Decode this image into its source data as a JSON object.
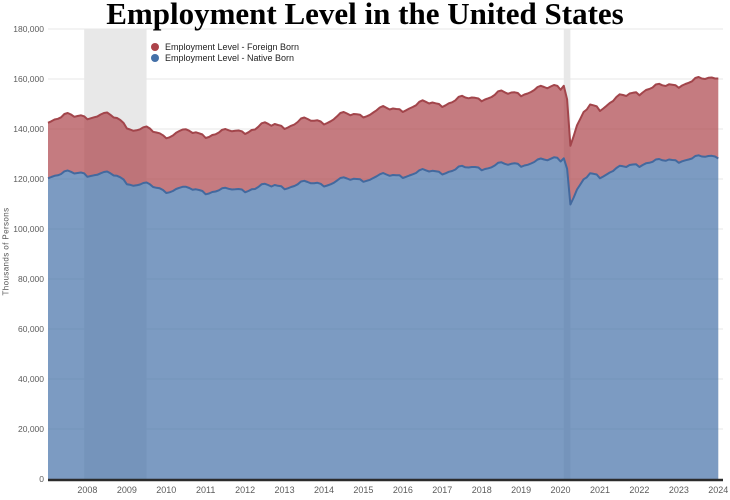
{
  "title": "Employment Level in the United States",
  "y_axis": {
    "unit_label": "Thousands of Persons",
    "tick_labels": [
      "0",
      "20,000",
      "40,000",
      "60,000",
      "80,000",
      "100,000",
      "120,000",
      "140,000",
      "160,000",
      "180,000"
    ]
  },
  "x_axis": {
    "tick_labels": [
      "2008",
      "2009",
      "2010",
      "2011",
      "2012",
      "2013",
      "2014",
      "2015",
      "2016",
      "2017",
      "2018",
      "2019",
      "2020",
      "2021",
      "2022",
      "2023",
      "2024"
    ]
  },
  "legend": {
    "items": [
      {
        "label": "Employment Level - Foreign Born",
        "color": "#ac434a"
      },
      {
        "label": "Employment Level - Native Born",
        "color": "#4470a8"
      }
    ]
  },
  "colors": {
    "foreign_stroke": "#a2454b",
    "foreign_fill": "rgba(172,67,74,0.70)",
    "native_stroke": "#43699e",
    "native_fill": "rgba(68,112,168,0.70)",
    "recession_band": "#e8e8e8",
    "gridline": "#e7e7e7",
    "axis_line": "#2b2b2b"
  },
  "chart_data": {
    "type": "area",
    "stacked": true,
    "title": "Employment Level in the United States",
    "ylabel": "Thousands of Persons",
    "ylim": [
      0,
      180000
    ],
    "y_step": 20000,
    "frequency": "monthly",
    "x_start": "2007-01",
    "x_end_data": "2024-01",
    "x_domain": [
      2007.0,
      2024.12
    ],
    "x_ticks": [
      2008,
      2009,
      2010,
      2011,
      2012,
      2013,
      2014,
      2015,
      2016,
      2017,
      2018,
      2019,
      2020,
      2021,
      2022,
      2023,
      2024
    ],
    "grid": "horizontal-only",
    "legend_position": "top-left-inside",
    "recession_bands": [
      [
        2007.917,
        2009.5
      ],
      [
        2020.083,
        2020.25
      ]
    ],
    "series": [
      {
        "name": "Employment Level - Native Born",
        "color": "#4470a8",
        "values": [
          120300,
          120800,
          121300,
          121500,
          122000,
          123100,
          123400,
          122900,
          122200,
          122400,
          122600,
          122300,
          120900,
          121200,
          121500,
          121700,
          122300,
          122800,
          123000,
          122300,
          121400,
          121300,
          120700,
          119800,
          117900,
          117700,
          117300,
          117500,
          117800,
          118400,
          118600,
          117900,
          116800,
          116500,
          116300,
          115600,
          114400,
          114700,
          115200,
          116000,
          116500,
          116900,
          116900,
          116400,
          115700,
          115900,
          115600,
          115200,
          113900,
          114200,
          114800,
          115000,
          115500,
          116300,
          116500,
          116100,
          115800,
          115900,
          116000,
          115800,
          114700,
          115200,
          115900,
          116000,
          116800,
          117900,
          118100,
          117600,
          117000,
          117600,
          117300,
          117100,
          115900,
          116300,
          116800,
          117200,
          117900,
          119000,
          119300,
          118800,
          118300,
          118300,
          118500,
          118100,
          117000,
          117400,
          117900,
          118500,
          119400,
          120400,
          120700,
          120200,
          119700,
          120100,
          120000,
          119900,
          118900,
          119300,
          119700,
          120400,
          121100,
          121900,
          122400,
          121800,
          121300,
          121600,
          121500,
          121500,
          120400,
          120900,
          121400,
          121900,
          122400,
          123500,
          124000,
          123500,
          123000,
          123300,
          123100,
          122900,
          121800,
          122300,
          122900,
          123200,
          123800,
          125000,
          125300,
          124700,
          124600,
          124800,
          124800,
          124600,
          123500,
          124000,
          124300,
          124700,
          125400,
          126500,
          126700,
          126100,
          125700,
          126100,
          126300,
          126100,
          124900,
          125400,
          125700,
          126200,
          126800,
          127800,
          128200,
          127800,
          127500,
          128100,
          128700,
          128500,
          127000,
          128300,
          124100,
          109800,
          112600,
          115800,
          117800,
          119900,
          120700,
          122300,
          122100,
          121800,
          120300,
          121000,
          121800,
          122600,
          123200,
          124400,
          125300,
          125100,
          124800,
          125600,
          125800,
          125900,
          124800,
          125600,
          126300,
          126500,
          126900,
          127800,
          128000,
          127500,
          127300,
          127800,
          127600,
          127500,
          126500,
          127100,
          127500,
          127800,
          128200,
          129200,
          129500,
          129000,
          128900,
          129200,
          129300,
          129000,
          128200
        ]
      },
      {
        "name": "Employment Level - Foreign Born",
        "color": "#ac434a",
        "values": [
          22200,
          22300,
          22500,
          22600,
          22700,
          22900,
          23000,
          22900,
          22700,
          22800,
          22900,
          22800,
          23000,
          23100,
          23200,
          23300,
          23500,
          23600,
          23600,
          23400,
          23200,
          23100,
          22900,
          22600,
          22300,
          22100,
          22000,
          22000,
          22100,
          22300,
          22400,
          22300,
          22100,
          22100,
          22000,
          21900,
          21900,
          22000,
          22200,
          22500,
          22700,
          22900,
          23000,
          22900,
          22700,
          22800,
          22700,
          22600,
          22500,
          22600,
          22800,
          22900,
          23100,
          23400,
          23500,
          23400,
          23300,
          23400,
          23400,
          23300,
          23300,
          23500,
          23700,
          23800,
          24100,
          24400,
          24600,
          24500,
          24300,
          24400,
          24300,
          24200,
          24100,
          24300,
          24500,
          24600,
          24900,
          25200,
          25300,
          25200,
          25000,
          25000,
          25000,
          24900,
          24800,
          25000,
          25200,
          25400,
          25700,
          26000,
          26100,
          26000,
          25800,
          25900,
          25900,
          25800,
          25700,
          25800,
          26000,
          26200,
          26400,
          26700,
          26800,
          26700,
          26500,
          26600,
          26500,
          26400,
          26400,
          26600,
          26800,
          26900,
          27100,
          27400,
          27500,
          27400,
          27200,
          27300,
          27200,
          27100,
          27000,
          27200,
          27400,
          27500,
          27700,
          27900,
          28000,
          27900,
          27700,
          27800,
          27700,
          27600,
          27600,
          27800,
          28000,
          28100,
          28300,
          28600,
          28700,
          28600,
          28400,
          28500,
          28400,
          28300,
          28200,
          28400,
          28500,
          28600,
          28800,
          29000,
          29100,
          29000,
          28800,
          28900,
          28900,
          28800,
          28700,
          29000,
          27800,
          23500,
          24600,
          25700,
          26300,
          26900,
          27100,
          27500,
          27400,
          27300,
          26900,
          27200,
          27500,
          27800,
          28000,
          28400,
          28600,
          28500,
          28400,
          28600,
          28700,
          28800,
          28700,
          29000,
          29300,
          29500,
          29700,
          30000,
          30100,
          30000,
          29900,
          30100,
          30100,
          30000,
          30000,
          30300,
          30500,
          30700,
          30900,
          31200,
          31300,
          31200,
          31100,
          31300,
          31300,
          31200,
          32000
        ]
      }
    ]
  }
}
